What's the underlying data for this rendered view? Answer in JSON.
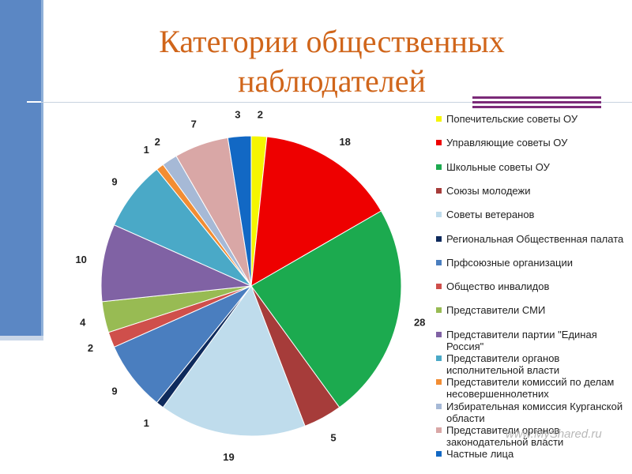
{
  "title_line1": "Категории общественных",
  "title_line2": "наблюдателей",
  "watermark": "www.MyShared.ru",
  "colors": {
    "title": "#d0651a",
    "accent_bar": "#7b2a78",
    "side_bar": "#5b87c4"
  },
  "chart_data": {
    "type": "pie",
    "title": "Категории общественных наблюдателей",
    "legend_position": "right",
    "start": "top, clockwise",
    "slices": [
      {
        "label": "Попечительские советы ОУ",
        "value": 2,
        "color": "#f5f500"
      },
      {
        "label": "Управляющие советы ОУ",
        "value": 18,
        "color": "#ee0000"
      },
      {
        "label": "Школьные советы ОУ",
        "value": 28,
        "color": "#1caa4f"
      },
      {
        "label": "Союзы молодежи",
        "value": 5,
        "color": "#a63c3a"
      },
      {
        "label": "Советы ветеранов",
        "value": 19,
        "color": "#bfdcec"
      },
      {
        "label": "Региональная Общественная палата",
        "value": 1,
        "color": "#0e2a5c"
      },
      {
        "label": "Прфсоюзные организации",
        "value": 9,
        "color": "#4a7ebf"
      },
      {
        "label": "Общество инвалидов",
        "value": 2,
        "color": "#cf4f4b"
      },
      {
        "label": "Представители СМИ",
        "value": 4,
        "color": "#98bb53"
      },
      {
        "label": "Представители партии \"Единая Россия\"",
        "value": 10,
        "color": "#8062a4"
      },
      {
        "label": "Представители органов исполнительной власти",
        "value": 9,
        "color": "#4aa9c7"
      },
      {
        "label": "Представители комиссий по делам несовершеннолетних",
        "value": 1,
        "color": "#f28d33"
      },
      {
        "label": "Избирательная комиссия Курганской области",
        "value": 2,
        "color": "#a6b9d6"
      },
      {
        "label": "Представители органов законодательной власти",
        "value": 7,
        "color": "#d9a7a6"
      },
      {
        "label": "Частные лица",
        "value": 3,
        "color": "#1268c4"
      }
    ]
  }
}
